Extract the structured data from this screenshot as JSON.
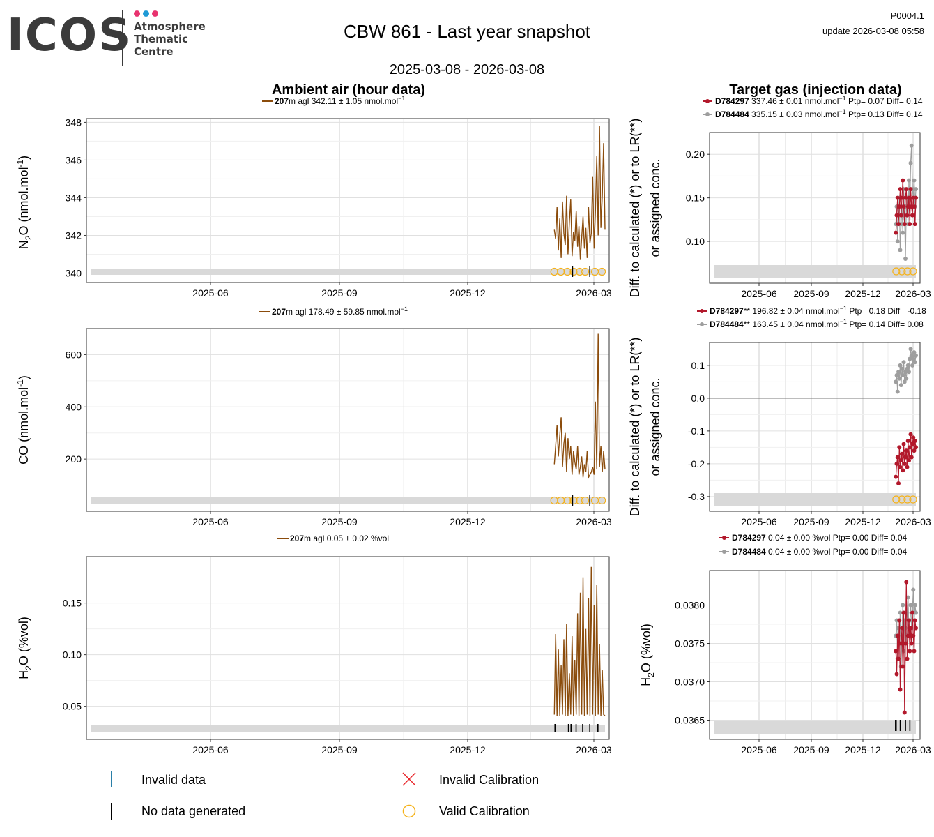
{
  "header": {
    "logo_text": "ICOS",
    "logo_sub": [
      "Atmosphere",
      "Thematic",
      "Centre"
    ],
    "title": "CBW 861 - Last year snapshot",
    "period": "2025-03-08 - 2026-03-08",
    "ref": "P0004.1",
    "update": "update  2026-03-08 05:58"
  },
  "columns": {
    "ambient": "Ambient air (hour data)",
    "target": "Target gas (injection data)"
  },
  "colors": {
    "ambient": "#8b4c0c",
    "d1": "#b2182b",
    "d2": "#9e9e9e",
    "calib": "#f5b21a",
    "invalid_cal": "#e8262a",
    "invalid_data": "#2a7fa8",
    "nodata": "#000000",
    "band": "#d9d9d9",
    "logo_dots": [
      "#e8336f",
      "#1f9ad6",
      "#e8336f"
    ]
  },
  "legend": {
    "invalid_data": "Invalid data",
    "no_data": "No data generated",
    "invalid_cal": "Invalid Calibration",
    "valid_cal": "Valid Calibration"
  },
  "chart_data": [
    {
      "id": "n2o-ambient",
      "type": "line",
      "ylabel_main": "N",
      "ylabel_sub": "2",
      "ylabel_rest": "O (nmol.mol",
      "ylabel_sup": "-1",
      "ylabel_end": ")",
      "series_label": {
        "bold": "207",
        "text": "m agl 342.11 ± 1.05 nmol.mol",
        "sup": "−1"
      },
      "ylim": [
        339.5,
        348.2
      ],
      "yticks": [
        340,
        342,
        344,
        346,
        348
      ],
      "xticks": [
        "2025-06",
        "2025-09",
        "2025-12",
        "2026-03"
      ],
      "series": [
        {
          "values": [
            342.3,
            341.8,
            343.5,
            341.2,
            342.9,
            340.8,
            343.8,
            342.1,
            341.5,
            344.1,
            341.0,
            342.7,
            343.9,
            340.9,
            342.2,
            341.7,
            343.3,
            341.4,
            342.5,
            340.7,
            341.9,
            343.0,
            341.3,
            342.4,
            340.8,
            343.5,
            341.6,
            342.1,
            345.1,
            341.3,
            343.2,
            346.2,
            342.0,
            347.8,
            342.4,
            344.1,
            346.9,
            342.3
          ]
        }
      ],
      "calib": [
        0.0,
        0.13,
        0.26,
        0.38,
        0.5,
        0.61,
        0.8,
        0.94
      ]
    },
    {
      "id": "co-ambient",
      "type": "line",
      "ylabel_main": "CO (nmol.mol",
      "ylabel_sup": "-1",
      "ylabel_end": ")",
      "series_label": {
        "bold": "207",
        "text": "m agl 178.49 ± 59.85 nmol.mol",
        "sup": "−1"
      },
      "ylim": [
        0,
        700
      ],
      "yticks": [
        200,
        400,
        600
      ],
      "xticks": [
        "2025-06",
        "2025-09",
        "2025-12",
        "2026-03"
      ],
      "series": [
        {
          "values": [
            180,
            250,
            330,
            210,
            290,
            360,
            170,
            260,
            300,
            150,
            280,
            200,
            250,
            140,
            230,
            190,
            160,
            250,
            140,
            170,
            210,
            130,
            180,
            150,
            230,
            130,
            140,
            150,
            170,
            140,
            420,
            160,
            680,
            170,
            250,
            150,
            230,
            160
          ]
        }
      ],
      "calib": [
        0.0,
        0.13,
        0.26,
        0.38,
        0.5,
        0.61,
        0.8,
        0.94
      ]
    },
    {
      "id": "h2o-ambient",
      "type": "line",
      "ylabel_main": "H",
      "ylabel_sub": "2",
      "ylabel_rest": "O (%vol)",
      "series_label": {
        "bold": "207",
        "text": "m agl 0.05 ± 0.02 %vol"
      },
      "ylim": [
        0.018,
        0.195
      ],
      "yticks": [
        0.05,
        0.1,
        0.15
      ],
      "xticks": [
        "2025-06",
        "2025-09",
        "2025-12",
        "2026-03"
      ],
      "series": [
        {
          "values": [
            0.042,
            0.12,
            0.041,
            0.105,
            0.041,
            0.09,
            0.042,
            0.115,
            0.041,
            0.13,
            0.041,
            0.082,
            0.042,
            0.118,
            0.041,
            0.095,
            0.042,
            0.14,
            0.041,
            0.16,
            0.042,
            0.175,
            0.041,
            0.125,
            0.042,
            0.155,
            0.041,
            0.185,
            0.042,
            0.148,
            0.041,
            0.168,
            0.042,
            0.11,
            0.041,
            0.085,
            0.042,
            0.041
          ]
        }
      ],
      "nodata": [
        0.02,
        0.28,
        0.33,
        0.43,
        0.56,
        0.7,
        0.86
      ]
    },
    {
      "id": "n2o-target",
      "type": "scatter",
      "ylabel_lines": [
        "Diff. to calculated (*) or to LR(**)",
        "or assigned conc."
      ],
      "legend_rows": [
        {
          "bold": "D784297",
          "text": " 337.46 ± 0.01 nmol.mol",
          "sup": "−1",
          "tail": " Ptp= 0.07 Diff= 0.14"
        },
        {
          "bold": "D784484",
          "text": " 335.15 ± 0.03 nmol.mol",
          "sup": "−1",
          "tail": " Ptp= 0.13 Diff= 0.14"
        }
      ],
      "ylim": [
        0.052,
        0.225
      ],
      "yticks": [
        0.1,
        0.15,
        0.2
      ],
      "ytick_labels": [
        "0.10",
        "0.15",
        "0.20"
      ],
      "xticks": [
        "2025-06",
        "2025-09",
        "2025-12",
        "2026-03"
      ],
      "series": [
        {
          "name": "D784297",
          "values": [
            0.11,
            0.13,
            0.15,
            0.12,
            0.14,
            0.16,
            0.13,
            0.15,
            0.17,
            0.14,
            0.12,
            0.15,
            0.16,
            0.13,
            0.14,
            0.15,
            0.12,
            0.16,
            0.14,
            0.13,
            0.15,
            0.14,
            0.12,
            0.15
          ]
        },
        {
          "name": "D784484",
          "values": [
            0.12,
            0.14,
            0.1,
            0.13,
            0.15,
            0.09,
            0.12,
            0.14,
            0.11,
            0.16,
            0.13,
            0.08,
            0.14,
            0.15,
            0.12,
            0.17,
            0.14,
            0.19,
            0.21,
            0.16,
            0.15,
            0.17,
            0.14,
            0.16
          ]
        }
      ],
      "calib": [
        0.02,
        0.3,
        0.58,
        0.86
      ]
    },
    {
      "id": "co-target",
      "type": "scatter",
      "ylabel_lines": [
        "Diff. to calculated (*) or to LR(**)",
        "or assigned conc."
      ],
      "legend_rows": [
        {
          "bold": "D784297",
          "text": "** 196.82 ± 0.04 nmol.mol",
          "sup": "−1",
          "tail": " Ptp= 0.18 Diff= -0.18"
        },
        {
          "bold": "D784484",
          "text": "** 163.45 ± 0.04 nmol.mol",
          "sup": "−1",
          "tail": " Ptp= 0.14 Diff= 0.08"
        }
      ],
      "ylim": [
        -0.345,
        0.17
      ],
      "yticks": [
        -0.3,
        -0.2,
        -0.1,
        0.0,
        0.1
      ],
      "ytick_labels": [
        "-0.3",
        "-0.2",
        "-0.1",
        "0.0",
        "0.1"
      ],
      "zero_line": true,
      "xticks": [
        "2025-06",
        "2025-09",
        "2025-12",
        "2026-03"
      ],
      "series": [
        {
          "name": "D784297",
          "values": [
            -0.24,
            -0.2,
            -0.18,
            -0.26,
            -0.15,
            -0.21,
            -0.19,
            -0.17,
            -0.22,
            -0.14,
            -0.2,
            -0.18,
            -0.16,
            -0.21,
            -0.13,
            -0.19,
            -0.15,
            -0.11,
            -0.18,
            -0.14,
            -0.12,
            -0.16,
            -0.13,
            -0.15
          ]
        },
        {
          "name": "D784484",
          "values": [
            0.05,
            0.07,
            0.02,
            0.08,
            0.06,
            0.1,
            0.04,
            0.09,
            0.07,
            0.11,
            0.05,
            0.08,
            0.06,
            0.09,
            0.1,
            0.08,
            0.12,
            0.15,
            0.13,
            0.1,
            0.12,
            0.14,
            0.11,
            0.13
          ]
        }
      ],
      "calib": [
        0.02,
        0.3,
        0.58,
        0.86
      ]
    },
    {
      "id": "h2o-target",
      "type": "scatter",
      "ylabel_main": "H",
      "ylabel_sub": "2",
      "ylabel_rest": "O (%vol)",
      "legend_rows": [
        {
          "bold": "D784297",
          "text": " 0.04 ± 0.00 %vol Ptp= 0.00 Diff= 0.04"
        },
        {
          "bold": "D784484",
          "text": " 0.04 ± 0.00 %vol Ptp= 0.00 Diff= 0.04"
        }
      ],
      "ylim": [
        0.03625,
        0.03845
      ],
      "yticks": [
        0.0365,
        0.037,
        0.0375,
        0.038
      ],
      "ytick_labels": [
        "0.0365",
        "0.0370",
        "0.0375",
        "0.0380"
      ],
      "xticks": [
        "2025-06",
        "2025-09",
        "2025-12",
        "2026-03"
      ],
      "series": [
        {
          "name": "D784297",
          "values": [
            0.0374,
            0.0371,
            0.0376,
            0.0373,
            0.0378,
            0.0369,
            0.0375,
            0.0377,
            0.0372,
            0.0379,
            0.0366,
            0.0375,
            0.0383,
            0.0373,
            0.0376,
            0.0378,
            0.0374,
            0.0377,
            0.0375,
            0.0379,
            0.0376,
            0.0374,
            0.0378,
            0.0377
          ]
        },
        {
          "name": "D784484",
          "values": [
            0.0376,
            0.0378,
            0.0373,
            0.0377,
            0.0375,
            0.0379,
            0.0372,
            0.0376,
            0.038,
            0.0374,
            0.0378,
            0.0377,
            0.0375,
            0.0379,
            0.0381,
            0.0376,
            0.0378,
            0.038,
            0.0377,
            0.0379,
            0.0382,
            0.0378,
            0.038,
            0.0379
          ]
        }
      ],
      "nodata": [
        0.0,
        0.22,
        0.48,
        0.7
      ]
    }
  ]
}
